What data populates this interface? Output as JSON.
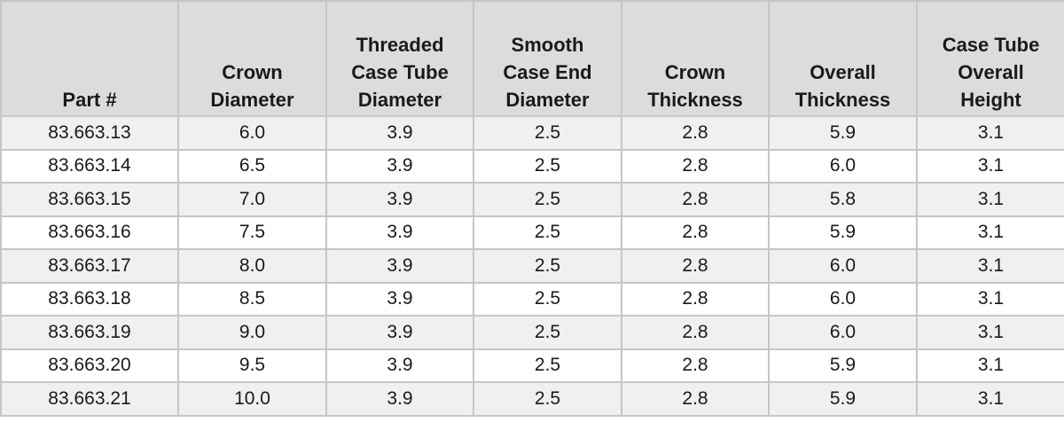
{
  "table": {
    "header": [
      [
        "Part #"
      ],
      [
        "Crown",
        "Diameter"
      ],
      [
        "Threaded",
        "Case Tube",
        "Diameter"
      ],
      [
        "Smooth",
        "Case End",
        "Diameter"
      ],
      [
        "Crown",
        "Thickness"
      ],
      [
        "Overall",
        "Thickness"
      ],
      [
        "Case Tube",
        "Overall",
        "Height"
      ]
    ],
    "rows": [
      [
        "83.663.13",
        "6.0",
        "3.9",
        "2.5",
        "2.8",
        "5.9",
        "3.1"
      ],
      [
        "83.663.14",
        "6.5",
        "3.9",
        "2.5",
        "2.8",
        "6.0",
        "3.1"
      ],
      [
        "83.663.15",
        "7.0",
        "3.9",
        "2.5",
        "2.8",
        "5.8",
        "3.1"
      ],
      [
        "83.663.16",
        "7.5",
        "3.9",
        "2.5",
        "2.8",
        "5.9",
        "3.1"
      ],
      [
        "83.663.17",
        "8.0",
        "3.9",
        "2.5",
        "2.8",
        "6.0",
        "3.1"
      ],
      [
        "83.663.18",
        "8.5",
        "3.9",
        "2.5",
        "2.8",
        "6.0",
        "3.1"
      ],
      [
        "83.663.19",
        "9.0",
        "3.9",
        "2.5",
        "2.8",
        "6.0",
        "3.1"
      ],
      [
        "83.663.20",
        "9.5",
        "3.9",
        "2.5",
        "2.8",
        "5.9",
        "3.1"
      ],
      [
        "83.663.21",
        "10.0",
        "3.9",
        "2.5",
        "2.8",
        "5.9",
        "3.1"
      ]
    ]
  }
}
